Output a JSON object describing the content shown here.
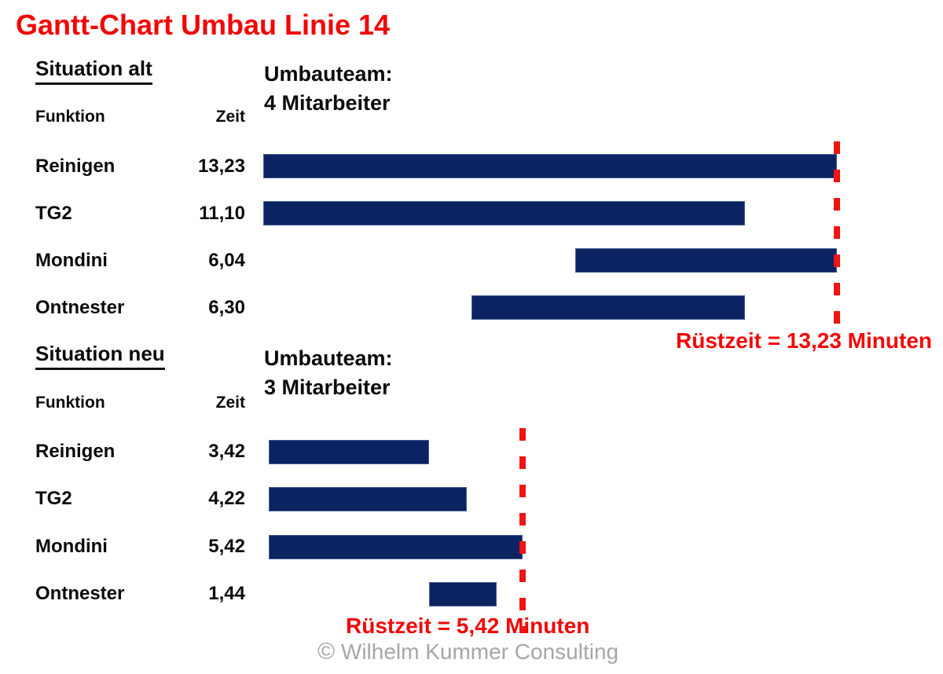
{
  "title": "Gantt-Chart Umbau Linie 14",
  "colors": {
    "title_red": "#f20606",
    "dash_red": "#f01414",
    "bar_blue": "#0c2361",
    "footer_gray": "#a6a6a6"
  },
  "chart_data": [
    {
      "type": "bar",
      "variant": "gantt",
      "section_title": "Situation alt",
      "team_line1": "Umbauteam:",
      "team_line2": "4 Mitarbeiter",
      "col_funktion": "Funktion",
      "col_zeit": "Zeit",
      "unit": "Minuten",
      "ruestzeit_label": "Rüstzeit = 13,23 Minuten",
      "ruestzeit_minutes": 13.23,
      "rows": [
        {
          "label": "Reinigen",
          "zeit": "13,23",
          "duration_min": 13.23,
          "start_min": 0
        },
        {
          "label": "TG2",
          "zeit": "11,10",
          "duration_min": 11.1,
          "start_min": 0
        },
        {
          "label": "Mondini",
          "zeit": "6,04",
          "duration_min": 6.04,
          "start_min": 7.19
        },
        {
          "label": "Ontnester",
          "zeit": "6,30",
          "duration_min": 6.3,
          "start_min": 4.8
        }
      ]
    },
    {
      "type": "bar",
      "variant": "gantt",
      "section_title": "Situation neu",
      "team_line1": "Umbauteam:",
      "team_line2": "3 Mitarbeiter",
      "col_funktion": "Funktion",
      "col_zeit": "Zeit",
      "unit": "Minuten",
      "ruestzeit_label": "Rüstzeit = 5,42 Minuten",
      "ruestzeit_minutes": 5.42,
      "rows": [
        {
          "label": "Reinigen",
          "zeit": "3,42",
          "duration_min": 3.42,
          "start_min": 0
        },
        {
          "label": "TG2",
          "zeit": "4,22",
          "duration_min": 4.22,
          "start_min": 0
        },
        {
          "label": "Mondini",
          "zeit": "5,42",
          "duration_min": 5.42,
          "start_min": 0
        },
        {
          "label": "Ontnester",
          "zeit": "1,44",
          "duration_min": 1.44,
          "start_min": 3.42
        }
      ]
    }
  ],
  "footer": {
    "copyright_symbol": "©",
    "text": "Wilhelm Kummer Consulting"
  }
}
